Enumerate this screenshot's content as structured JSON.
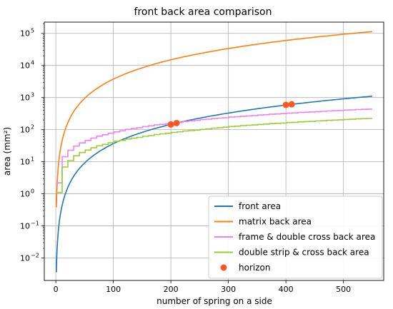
{
  "chart_data": {
    "type": "line",
    "title": "front back area comparison",
    "xlabel": "number of spring on a side",
    "ylabel": "area (mm²)",
    "xlim": [
      -20,
      570
    ],
    "ylim_log10": [
      -2.7,
      5.35
    ],
    "yscale": "log",
    "grid": true,
    "legend_position": "lower-right",
    "x_ticks": [
      "0",
      "100",
      "200",
      "300",
      "400",
      "500"
    ],
    "y_ticks": [
      {
        "base": "10",
        "exp": "−2"
      },
      {
        "base": "10",
        "exp": "−1"
      },
      {
        "base": "10",
        "exp": "0"
      },
      {
        "base": "10",
        "exp": "1"
      },
      {
        "base": "10",
        "exp": "2"
      },
      {
        "base": "10",
        "exp": "3"
      },
      {
        "base": "10",
        "exp": "4"
      },
      {
        "base": "10",
        "exp": "5"
      }
    ],
    "series": [
      {
        "name": "front area",
        "color": "#1f77b4",
        "style": "line",
        "x": [
          1,
          2,
          3,
          5,
          8,
          12,
          20,
          30,
          50,
          75,
          100,
          150,
          200,
          250,
          300,
          350,
          400,
          450,
          500,
          550
        ],
        "y": [
          0.0036,
          0.015,
          0.033,
          0.09,
          0.23,
          0.52,
          1.45,
          3.3,
          9.1,
          20.5,
          36.5,
          82,
          146,
          228,
          328,
          447,
          583,
          738,
          911,
          1102
        ]
      },
      {
        "name": "matrix back area",
        "color": "#ff7f0e",
        "style": "line",
        "x": [
          1,
          2,
          3,
          5,
          8,
          12,
          20,
          30,
          50,
          75,
          100,
          150,
          200,
          250,
          300,
          350,
          400,
          450,
          500,
          550
        ],
        "y": [
          0.38,
          1.5,
          3.4,
          9.4,
          24,
          54,
          150,
          340,
          940,
          2100,
          3750,
          8400,
          15000,
          23400,
          33700,
          45900,
          60000,
          75900,
          93700,
          113400
        ]
      },
      {
        "name": "frame & double cross back area",
        "color": "#ee82ee",
        "style": "step",
        "x": [
          1,
          3,
          6,
          10,
          15,
          20,
          30,
          40,
          50,
          75,
          100,
          150,
          200,
          250,
          300,
          350,
          400,
          450,
          500,
          550
        ],
        "y": [
          2.2,
          6,
          9.5,
          13.5,
          18,
          22,
          30,
          38,
          46,
          66,
          85,
          125,
          162,
          205,
          245,
          285,
          325,
          365,
          405,
          445
        ]
      },
      {
        "name": "double strip & cross back area",
        "color": "#9acd32",
        "style": "step",
        "x": [
          1,
          3,
          6,
          10,
          15,
          20,
          30,
          40,
          50,
          75,
          100,
          150,
          200,
          250,
          300,
          350,
          400,
          450,
          500,
          550
        ],
        "y": [
          1.1,
          2.8,
          4.5,
          6.5,
          8.5,
          10.5,
          15,
          19,
          23,
          33,
          43,
          62,
          82,
          102,
          125,
          145,
          166,
          186,
          207,
          228
        ]
      },
      {
        "name": "horizon",
        "color": "#ff5722",
        "style": "marker",
        "x": [
          200,
          210,
          400,
          410
        ],
        "y": [
          145,
          160,
          590,
          615
        ]
      }
    ]
  }
}
